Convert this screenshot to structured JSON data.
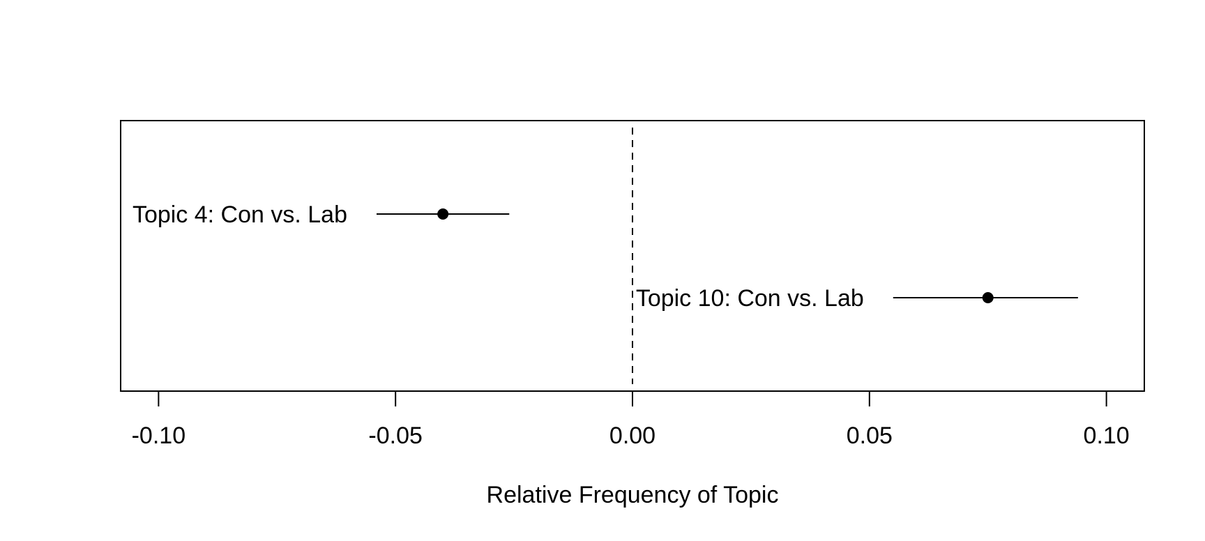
{
  "chart_data": {
    "type": "scatter",
    "xlabel": "Relative Frequency of Topic",
    "xlim": [
      -0.108,
      0.108
    ],
    "xticks": [
      -0.1,
      -0.05,
      0.0,
      0.05,
      0.1
    ],
    "xtick_labels": [
      "-0.10",
      "-0.05",
      "0.00",
      "0.05",
      "0.10"
    ],
    "reference_line": {
      "x": 0.0,
      "style": "dashed"
    },
    "points": [
      {
        "label": "Topic 4: Con vs. Lab",
        "estimate": -0.04,
        "lower": -0.054,
        "upper": -0.026
      },
      {
        "label": "Topic 10: Con vs. Lab",
        "estimate": 0.075,
        "lower": 0.055,
        "upper": 0.094
      }
    ],
    "colors": {
      "ink": "#000000",
      "background": "#ffffff"
    }
  }
}
